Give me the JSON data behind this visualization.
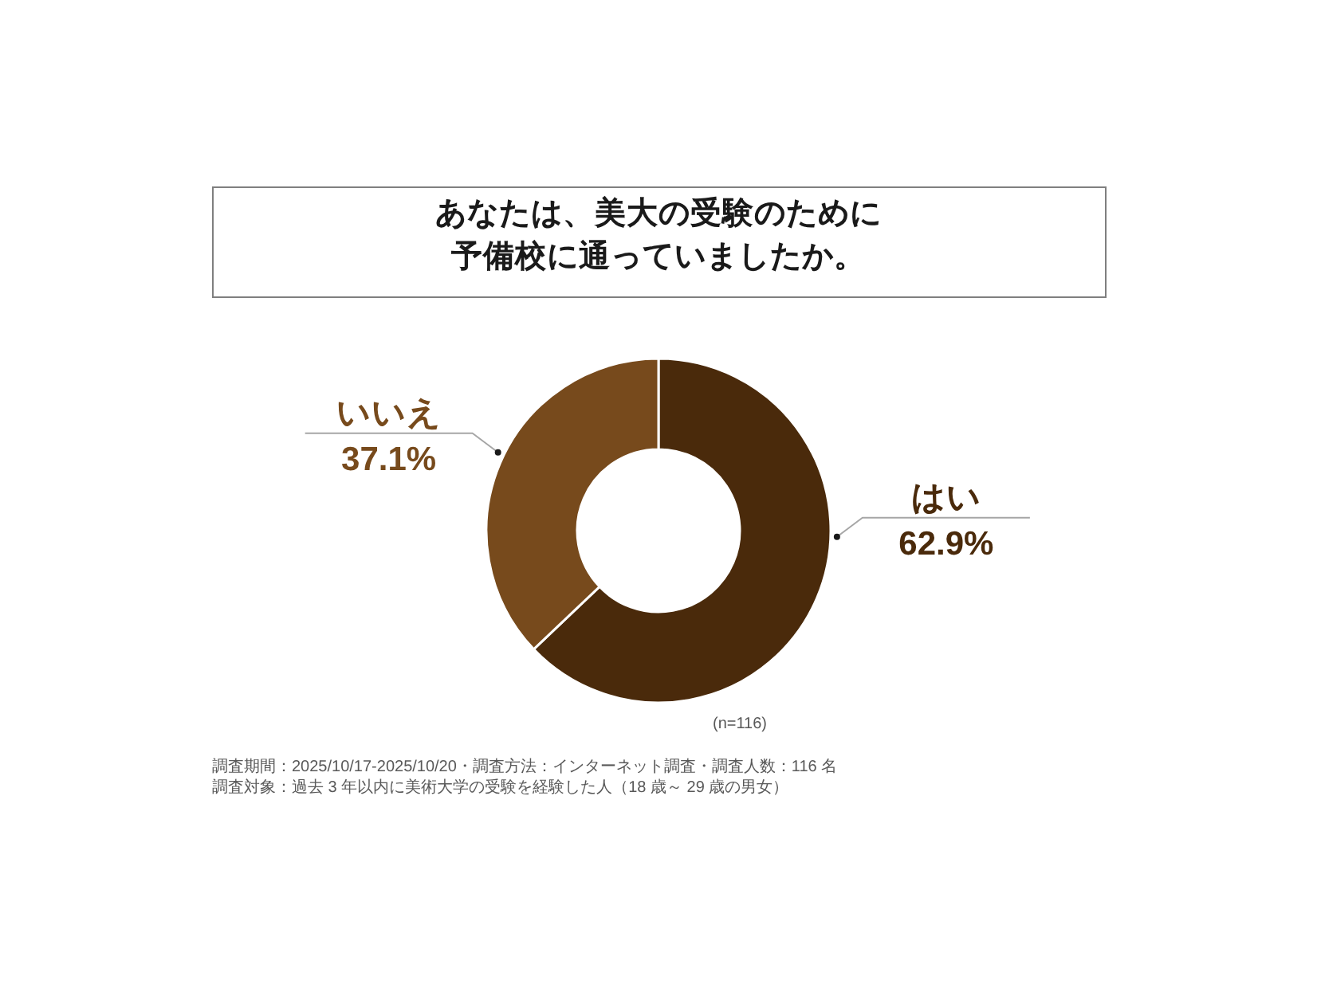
{
  "chart_data": {
    "type": "donut",
    "title": "あなたは、美大の受験のために予備校に通っていましたか。",
    "categories": [
      "はい",
      "いいえ"
    ],
    "values": [
      62.9,
      37.1
    ],
    "colors": [
      "#4a2a0b",
      "#774a1c"
    ],
    "value_labels": [
      "62.9%",
      "37.1%"
    ],
    "annotations": [
      "(n=116)",
      "調査期間：2025/10/17-2025/10/20・調査方法：インターネット調査・調査人数：116 名",
      "調査対象：過去 3 年以内に美術大学の受験を経験した人（18 歳～ 29 歳の男女）"
    ]
  }
}
